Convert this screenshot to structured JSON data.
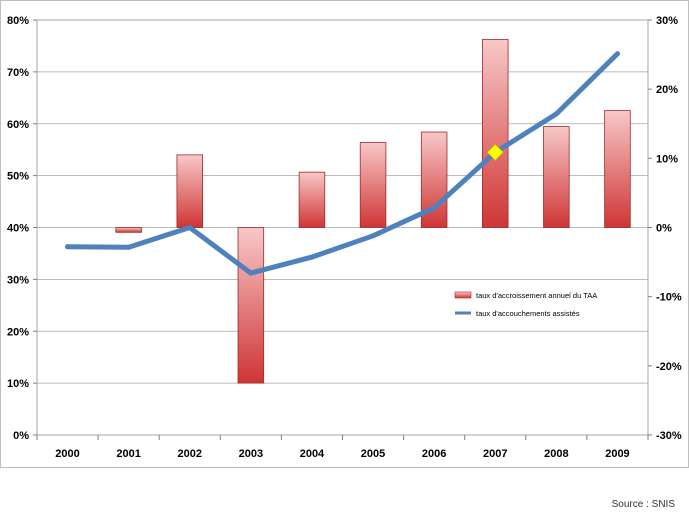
{
  "chart_data": {
    "type": "bar",
    "title": "",
    "xlabel": "",
    "ylabel": "",
    "categories": [
      "2000",
      "2001",
      "2002",
      "2003",
      "2004",
      "2005",
      "2006",
      "2007",
      "2008",
      "2009"
    ],
    "y_left": {
      "ticks": [
        "0%",
        "10%",
        "20%",
        "30%",
        "40%",
        "50%",
        "60%",
        "70%",
        "80%"
      ],
      "ylim": [
        0,
        80
      ]
    },
    "y_right": {
      "ticks": [
        "-30%",
        "-20%",
        "-10%",
        "0%",
        "10%",
        "20%",
        "30%"
      ],
      "ylim": [
        -30,
        30
      ]
    },
    "series": [
      {
        "name": "taux d'accroissement annuel du TAA",
        "kind": "bar",
        "axis": "right",
        "color": "#e06666",
        "values": [
          null,
          -0.7,
          10.5,
          -22.5,
          8.0,
          12.3,
          13.8,
          27.2,
          14.6,
          16.9
        ]
      },
      {
        "name": "taux d'accouchements assistés",
        "kind": "line",
        "axis": "left",
        "color": "#4f81bd",
        "values": [
          36.3,
          36.2,
          40.0,
          31.2,
          34.3,
          38.4,
          43.8,
          54.5,
          61.9,
          73.5
        ]
      }
    ],
    "highlight": {
      "category": "2007",
      "series": "taux d'accouchements assistés",
      "marker_color": "#ffff00"
    },
    "legend_position": "right",
    "grid": true
  },
  "source_note": "Source : SNIS"
}
